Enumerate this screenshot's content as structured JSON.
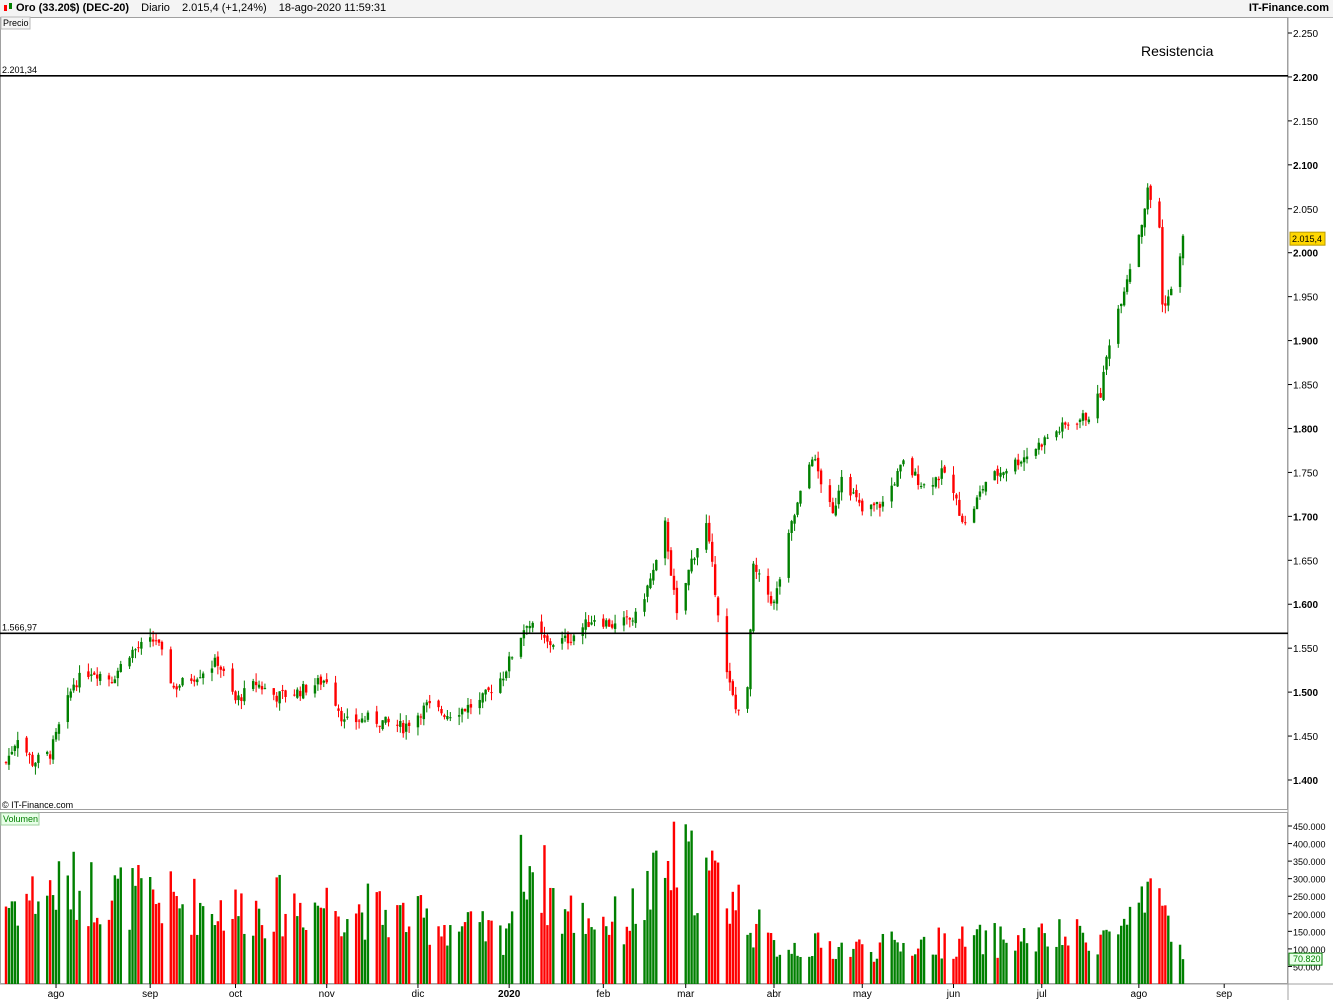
{
  "header": {
    "instrument": "Oro (33.20$) (DEC-20)",
    "period": "Diario",
    "last": "2.015,4 (+1,24%)",
    "datetime": "18-ago-2020 11:59:31",
    "brand": "IT-Finance.com"
  },
  "price_panel": {
    "label": "Precio",
    "watermark": "© IT-Finance.com",
    "annotation": "Resistencia",
    "last_tag": "2.015,4"
  },
  "volume_panel": {
    "label": "Volumen",
    "last_tag": "70.820"
  },
  "colors": {
    "up": "#008000",
    "down": "#ff0000",
    "tag": "#ffd700",
    "line": "#000000"
  },
  "chart_data": [
    {
      "type": "candlestick",
      "title": "Oro (33.20$) (DEC-20)",
      "x_labels": [
        "ago",
        "sep",
        "oct",
        "nov",
        "dic",
        "2020",
        "feb",
        "mar",
        "abr",
        "may",
        "jun",
        "jul",
        "ago",
        "sep"
      ],
      "ylim": [
        1380,
        2260
      ],
      "y_ticks": [
        "1.400",
        "1.450",
        "1.500",
        "1.550",
        "1.600",
        "1.650",
        "1.700",
        "1.750",
        "1.800",
        "1.850",
        "1.900",
        "1.950",
        "2.000",
        "2.050",
        "2.100",
        "2.150",
        "2.200",
        "2.250"
      ],
      "horizontal_lines": [
        {
          "label": "2.201,34",
          "value": 2201.34
        },
        {
          "label": "1.566,97",
          "value": 1566.97
        }
      ],
      "last_price": 2015.4,
      "grid": false,
      "anchors": [
        [
          "2019-07-15",
          1420
        ],
        [
          "2019-07-19",
          1450
        ],
        [
          "2019-07-24",
          1420
        ],
        [
          "2019-07-30",
          1430
        ],
        [
          "2019-08-07",
          1510
        ],
        [
          "2019-08-13",
          1525
        ],
        [
          "2019-08-20",
          1515
        ],
        [
          "2019-08-26",
          1545
        ],
        [
          "2019-09-04",
          1560
        ],
        [
          "2019-09-10",
          1505
        ],
        [
          "2019-09-18",
          1520
        ],
        [
          "2019-09-25",
          1535
        ],
        [
          "2019-10-01",
          1490
        ],
        [
          "2019-10-08",
          1510
        ],
        [
          "2019-10-15",
          1495
        ],
        [
          "2019-10-22",
          1500
        ],
        [
          "2019-11-01",
          1515
        ],
        [
          "2019-11-07",
          1465
        ],
        [
          "2019-11-15",
          1470
        ],
        [
          "2019-11-27",
          1460
        ],
        [
          "2019-12-05",
          1484
        ],
        [
          "2019-12-12",
          1475
        ],
        [
          "2019-12-23",
          1488
        ],
        [
          "2019-12-31",
          1520
        ],
        [
          "2020-01-08",
          1580
        ],
        [
          "2020-01-15",
          1555
        ],
        [
          "2020-01-22",
          1560
        ],
        [
          "2020-01-31",
          1585
        ],
        [
          "2020-02-07",
          1575
        ],
        [
          "2020-02-14",
          1585
        ],
        [
          "2020-02-21",
          1645
        ],
        [
          "2020-02-24",
          1690
        ],
        [
          "2020-02-28",
          1585
        ],
        [
          "2020-03-04",
          1650
        ],
        [
          "2020-03-09",
          1690
        ],
        [
          "2020-03-16",
          1520
        ],
        [
          "2020-03-19",
          1480
        ],
        [
          "2020-03-23",
          1500
        ],
        [
          "2020-03-25",
          1640
        ],
        [
          "2020-04-01",
          1600
        ],
        [
          "2020-04-07",
          1690
        ],
        [
          "2020-04-14",
          1770
        ],
        [
          "2020-04-21",
          1700
        ],
        [
          "2020-04-24",
          1750
        ],
        [
          "2020-05-01",
          1705
        ],
        [
          "2020-05-08",
          1715
        ],
        [
          "2020-05-15",
          1760
        ],
        [
          "2020-05-22",
          1735
        ],
        [
          "2020-05-29",
          1750
        ],
        [
          "2020-06-05",
          1690
        ],
        [
          "2020-06-12",
          1740
        ],
        [
          "2020-06-19",
          1755
        ],
        [
          "2020-06-26",
          1770
        ],
        [
          "2020-07-03",
          1790
        ],
        [
          "2020-07-10",
          1805
        ],
        [
          "2020-07-17",
          1815
        ],
        [
          "2020-07-21",
          1840
        ],
        [
          "2020-07-24",
          1900
        ],
        [
          "2020-07-31",
          1985
        ],
        [
          "2020-08-04",
          2035
        ],
        [
          "2020-08-06",
          2070
        ],
        [
          "2020-08-10",
          2030
        ],
        [
          "2020-08-11",
          1940
        ],
        [
          "2020-08-14",
          1955
        ],
        [
          "2020-08-18",
          2015.4
        ]
      ]
    },
    {
      "type": "bar",
      "title": "Volumen",
      "ylim": [
        0,
        470000
      ],
      "y_ticks": [
        "50.000",
        "100.000",
        "150.000",
        "200.000",
        "250.000",
        "300.000",
        "350.000",
        "400.000",
        "450.000"
      ],
      "last_value": 70820,
      "anchors": [
        [
          "2019-07-15",
          250000
        ],
        [
          "2019-08-05",
          300000
        ],
        [
          "2019-09-02",
          260000
        ],
        [
          "2019-10-01",
          230000
        ],
        [
          "2019-11-01",
          250000
        ],
        [
          "2019-12-01",
          200000
        ],
        [
          "2019-12-31",
          150000
        ],
        [
          "2020-01-08",
          400000
        ],
        [
          "2020-01-20",
          220000
        ],
        [
          "2020-02-10",
          190000
        ],
        [
          "2020-02-28",
          380000
        ],
        [
          "2020-03-15",
          300000
        ],
        [
          "2020-03-31",
          120000
        ],
        [
          "2020-05-01",
          110000
        ],
        [
          "2020-06-01",
          130000
        ],
        [
          "2020-07-01",
          140000
        ],
        [
          "2020-07-24",
          150000
        ],
        [
          "2020-08-11",
          260000
        ],
        [
          "2020-08-18",
          70820
        ]
      ]
    }
  ]
}
